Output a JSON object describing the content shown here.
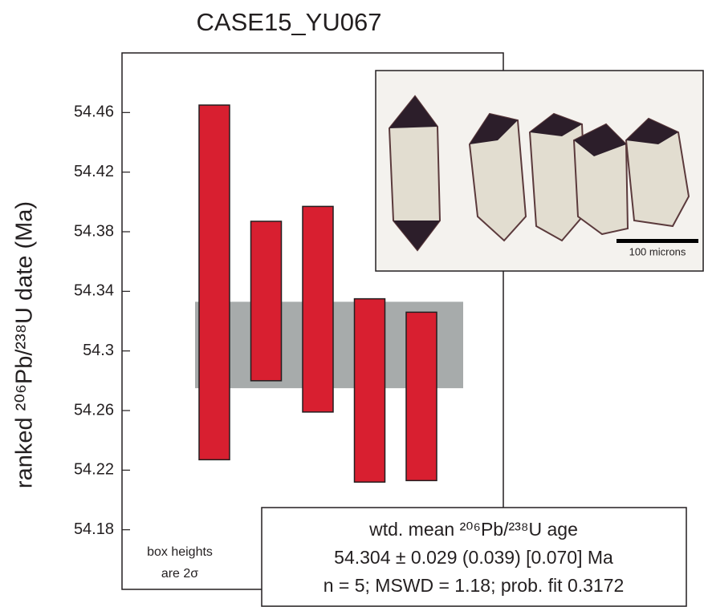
{
  "chart_data": {
    "type": "range_bar",
    "title": "CASE15_YU067",
    "y_label": "ranked ²⁰⁶Pb/²³⁸U date (Ma)",
    "high": [
      54.465,
      54.387,
      54.397,
      54.335,
      54.326
    ],
    "low": [
      54.227,
      54.28,
      54.259,
      54.212,
      54.213
    ],
    "color": "#d81f30",
    "band": {
      "low": 54.275,
      "high": 54.333,
      "color": "#a7abab"
    },
    "ylim": [
      54.14,
      54.5
    ],
    "yticks": [
      54.18,
      54.22,
      54.26,
      54.3,
      54.34,
      54.38,
      54.42,
      54.46
    ],
    "annotation": [
      "box heights",
      "are 2σ"
    ],
    "result_box": [
      "wtd. mean ²⁰⁶Pb/²³⁸U age",
      "54.304 ± 0.029 (0.039) [0.070] Ma",
      "n = 5; MSWD = 1.18; prob. fit 0.3172"
    ],
    "inset": {
      "scale_label": "100 microns"
    }
  }
}
